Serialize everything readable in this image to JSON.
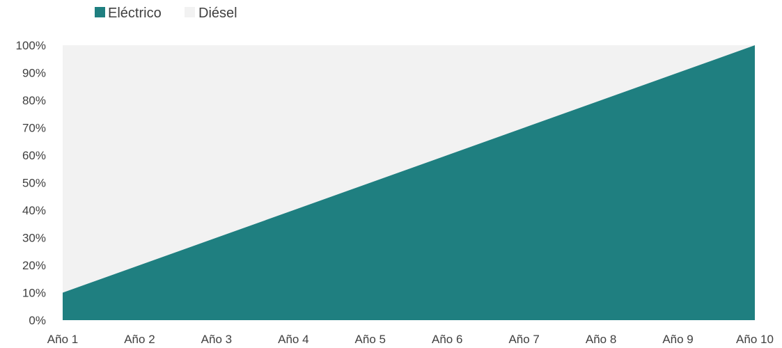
{
  "chart_data": {
    "type": "area",
    "stacked": true,
    "percent_stacked": true,
    "categories": [
      "Año 1",
      "Año 2",
      "Año 3",
      "Año 4",
      "Año 5",
      "Año 6",
      "Año 7",
      "Año 8",
      "Año 9",
      "Año 10"
    ],
    "series": [
      {
        "name": "Eléctrico",
        "values": [
          10,
          20,
          30,
          40,
          50,
          60,
          70,
          80,
          90,
          100
        ],
        "color": "#1f7f80"
      },
      {
        "name": "Diésel",
        "values": [
          90,
          80,
          70,
          60,
          50,
          40,
          30,
          20,
          10,
          0
        ],
        "color": "#f2f2f2"
      }
    ],
    "y_ticks": [
      "0%",
      "10%",
      "20%",
      "30%",
      "40%",
      "50%",
      "60%",
      "70%",
      "80%",
      "90%",
      "100%"
    ],
    "ylim": [
      0,
      100
    ],
    "title": "",
    "xlabel": "",
    "ylabel": "",
    "legend_position": "top-left",
    "grid": false
  }
}
